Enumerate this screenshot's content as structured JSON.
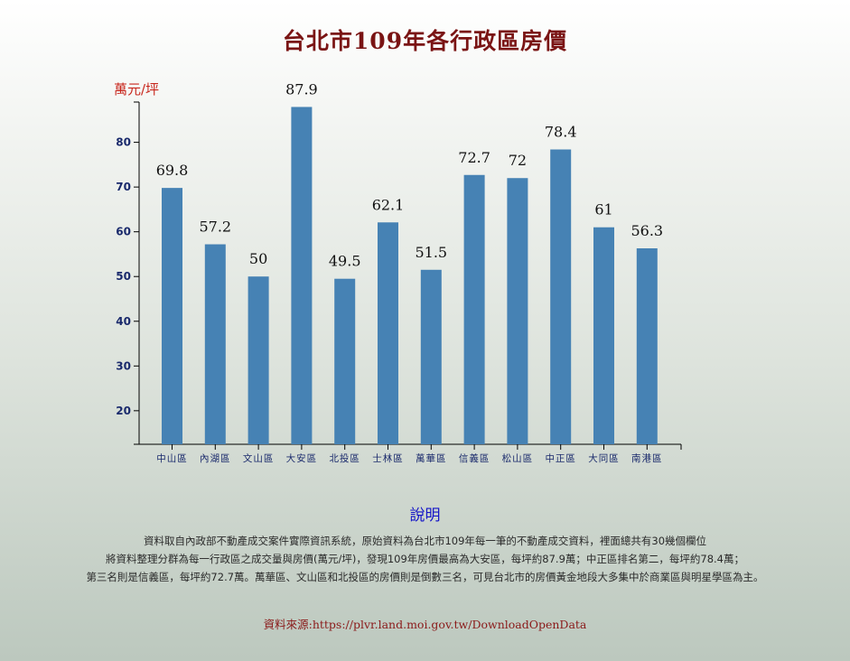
{
  "title": "台北市109年各行政區房價",
  "chart_data": {
    "type": "bar",
    "ylabel": "萬元/坪",
    "categories": [
      "中山區",
      "內湖區",
      "文山區",
      "大安區",
      "北投區",
      "士林區",
      "萬華區",
      "信義區",
      "松山區",
      "中正區",
      "大同區",
      "南港區"
    ],
    "values": [
      69.8,
      57.2,
      50,
      87.9,
      49.5,
      62.1,
      51.5,
      72.7,
      72,
      78.4,
      61,
      56.3
    ],
    "value_labels": [
      "69.8",
      "57.2",
      "50",
      "87.9",
      "49.5",
      "62.1",
      "51.5",
      "72.7",
      "72",
      "78.4",
      "61",
      "56.3"
    ],
    "yticks": [
      20,
      30,
      40,
      50,
      60,
      70,
      80
    ],
    "ylim": [
      12.5,
      89
    ],
    "bar_color": "#4682b4",
    "grid": false
  },
  "note": {
    "heading": "說明",
    "lines": [
      "資料取自內政部不動產成交案件實際資訊系統，原始資料為台北市109年每一筆的不動產成交資料，裡面總共有30幾個欄位",
      "將資料整理分群為每一行政區之成交量與房價(萬元/坪)，發現109年房價最高為大安區，每坪約87.9萬；中正區排名第二，每坪約78.4萬；",
      "第三名則是信義區，每坪約72.7萬。萬華區、文山區和北投區的房價則是倒數三名，可見台北市的房價黃金地段大多集中於商業區與明星學區為主。"
    ],
    "source": "資料來源:https://plvr.land.moi.gov.tw/DownloadOpenData"
  }
}
